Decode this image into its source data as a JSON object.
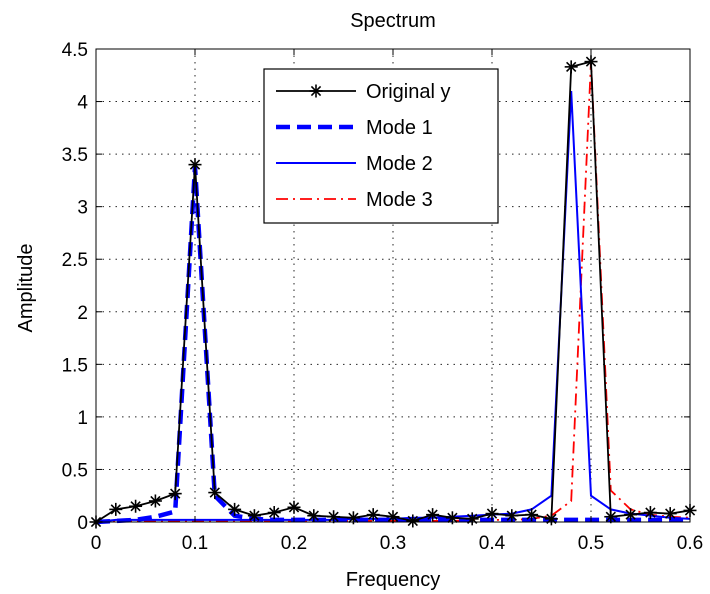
{
  "chart_data": {
    "type": "line",
    "title": "Spectrum",
    "xlabel": "Frequency",
    "ylabel": "Amplitude",
    "xlim": [
      0,
      0.6
    ],
    "ylim": [
      0,
      4.5
    ],
    "xticks": [
      "0",
      "0.1",
      "0.2",
      "0.3",
      "0.4",
      "0.5",
      "0.6"
    ],
    "xtick_values": [
      0,
      0.1,
      0.2,
      0.3,
      0.4,
      0.5,
      0.6
    ],
    "yticks": [
      "0",
      "0.5",
      "1",
      "1.5",
      "2",
      "2.5",
      "3",
      "3.5",
      "4",
      "4.5"
    ],
    "ytick_values": [
      0,
      0.5,
      1,
      1.5,
      2,
      2.5,
      3,
      3.5,
      4,
      4.5
    ],
    "grid": true,
    "legend_position": "top-center",
    "x": [
      0,
      0.02,
      0.04,
      0.06,
      0.08,
      0.1,
      0.12,
      0.14,
      0.16,
      0.18,
      0.2,
      0.22,
      0.24,
      0.26,
      0.28,
      0.3,
      0.32,
      0.34,
      0.36,
      0.38,
      0.4,
      0.42,
      0.44,
      0.46,
      0.48,
      0.5,
      0.52,
      0.54,
      0.56,
      0.58,
      0.6
    ],
    "series": [
      {
        "name": "Original y",
        "color": "#000000",
        "style": "solid",
        "marker": "asterisk",
        "values": [
          0,
          0.12,
          0.15,
          0.2,
          0.27,
          3.4,
          0.28,
          0.12,
          0.06,
          0.09,
          0.14,
          0.06,
          0.05,
          0.04,
          0.07,
          0.05,
          0.01,
          0.07,
          0.04,
          0.03,
          0.08,
          0.06,
          0.07,
          0.03,
          4.33,
          4.38,
          0.05,
          0.07,
          0.09,
          0.08,
          0.11
        ]
      },
      {
        "name": "Mode 1",
        "color": "#0000ff",
        "style": "dashed-thick",
        "values": [
          0,
          0.01,
          0.02,
          0.05,
          0.1,
          3.38,
          0.25,
          0.06,
          0.03,
          0.02,
          0.02,
          0.02,
          0.02,
          0.02,
          0.02,
          0.02,
          0.02,
          0.02,
          0.02,
          0.02,
          0.02,
          0.02,
          0.02,
          0.02,
          0.02,
          0.02,
          0.02,
          0.02,
          0.02,
          0.02,
          0.02
        ]
      },
      {
        "name": "Mode 2",
        "color": "#0000ff",
        "style": "solid",
        "values": [
          0,
          0.02,
          0.02,
          0.02,
          0.02,
          0.02,
          0.02,
          0.02,
          0.02,
          0.02,
          0.02,
          0.02,
          0.02,
          0.03,
          0.03,
          0.03,
          0.04,
          0.04,
          0.05,
          0.06,
          0.07,
          0.08,
          0.12,
          0.25,
          4.1,
          0.25,
          0.12,
          0.08,
          0.06,
          0.04,
          0.03
        ]
      },
      {
        "name": "Mode 3",
        "color": "#ff0000",
        "style": "dashdot",
        "values": [
          0,
          0.01,
          0.01,
          0.01,
          0.01,
          0.01,
          0.01,
          0.01,
          0.01,
          0.01,
          0.01,
          0.01,
          0.01,
          0.01,
          0.01,
          0.01,
          0.01,
          0.01,
          0.01,
          0.02,
          0.02,
          0.02,
          0.03,
          0.06,
          0.2,
          4.38,
          0.3,
          0.12,
          0.07,
          0.05,
          0.04
        ]
      }
    ]
  }
}
